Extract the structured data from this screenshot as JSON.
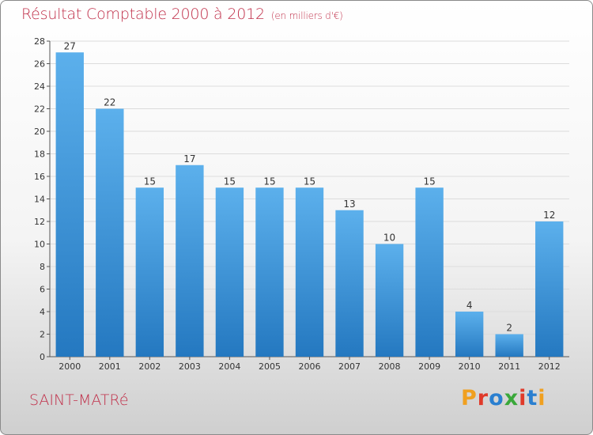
{
  "header": {
    "title": "Résultat Comptable 2000 à 2012",
    "subtitle": "(en milliers d'€)"
  },
  "footer": {
    "commune": "SAINT-MATRé",
    "brand": "Proxiti",
    "brand_colors": [
      "#f0a020",
      "#e03a2a",
      "#2a7fd0",
      "#3aa83a",
      "#e03a2a",
      "#2a7fd0",
      "#f0a020"
    ]
  },
  "colors": {
    "title": "#c0304a",
    "bar_light": "#5cb0ec",
    "bar_dark": "#2478c0",
    "grid": "#dcdcdc"
  },
  "chart_data": {
    "type": "bar",
    "title": "Résultat Comptable 2000 à 2012",
    "subtitle": "(en milliers d'€)",
    "categories": [
      "2000",
      "2001",
      "2002",
      "2003",
      "2004",
      "2005",
      "2006",
      "2007",
      "2008",
      "2009",
      "2010",
      "2011",
      "2012"
    ],
    "values": [
      27,
      22,
      15,
      17,
      15,
      15,
      15,
      13,
      10,
      15,
      4,
      2,
      12
    ],
    "ylim": [
      0,
      28
    ],
    "yticks": [
      0,
      2,
      4,
      6,
      8,
      10,
      12,
      14,
      16,
      18,
      20,
      22,
      24,
      26,
      28
    ],
    "grid": true,
    "data_labels": true
  }
}
